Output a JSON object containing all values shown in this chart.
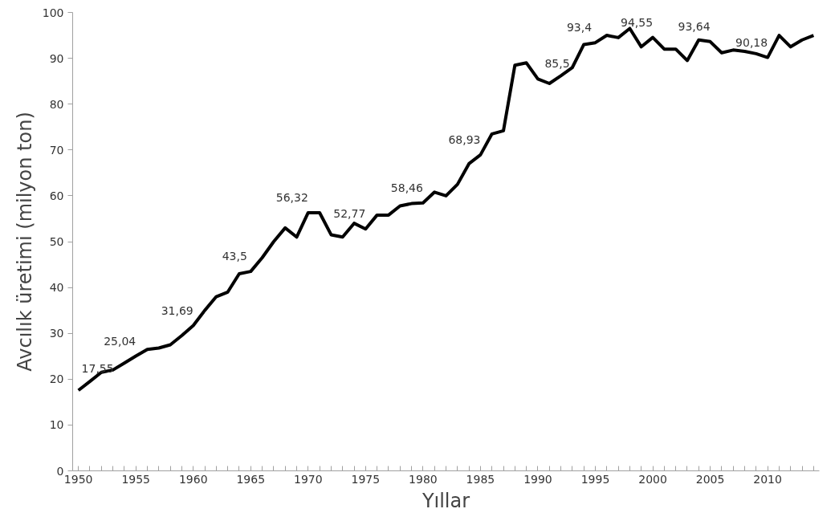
{
  "chart_data": {
    "type": "line",
    "xlabel": "Yıllar",
    "ylabel": "Avcılık üretimi (milyon ton)",
    "x": [
      1950,
      1951,
      1952,
      1953,
      1954,
      1955,
      1956,
      1957,
      1958,
      1959,
      1960,
      1961,
      1962,
      1963,
      1964,
      1965,
      1966,
      1967,
      1968,
      1969,
      1970,
      1971,
      1972,
      1973,
      1974,
      1975,
      1976,
      1977,
      1978,
      1979,
      1980,
      1981,
      1982,
      1983,
      1984,
      1985,
      1986,
      1987,
      1988,
      1989,
      1990,
      1991,
      1992,
      1993,
      1994,
      1995,
      1996,
      1997,
      1998,
      1999,
      2000,
      2001,
      2002,
      2003,
      2004,
      2005,
      2006,
      2007,
      2008,
      2009,
      2010,
      2011,
      2012,
      2013,
      2014
    ],
    "series": [
      {
        "color": "#000000",
        "values": [
          17.55,
          19.5,
          21.5,
          22,
          23.5,
          25.04,
          26.5,
          26.8,
          27.5,
          29.5,
          31.69,
          35,
          38,
          39,
          43,
          43.5,
          46.5,
          50,
          53,
          51,
          56.32,
          56.3,
          51.5,
          51,
          54,
          52.77,
          55.8,
          55.8,
          57.8,
          58.3,
          58.46,
          60.8,
          60,
          62.5,
          67,
          68.93,
          73.5,
          74.2,
          88.5,
          89,
          85.5,
          84.5,
          86.2,
          88,
          93,
          93.4,
          95,
          94.5,
          96.5,
          92.5,
          94.55,
          92,
          92,
          89.5,
          94,
          93.64,
          91.2,
          91.8,
          91.5,
          91,
          90.18,
          95,
          92.5,
          94,
          95
        ],
        "value_labels": [
          "17,55",
          null,
          null,
          null,
          null,
          "25,04",
          null,
          null,
          null,
          null,
          "31,69",
          null,
          null,
          null,
          null,
          "43,5",
          null,
          null,
          null,
          null,
          "56,32",
          null,
          null,
          null,
          null,
          "52,77",
          null,
          null,
          null,
          null,
          "58,46",
          null,
          null,
          null,
          null,
          "68,93",
          null,
          null,
          null,
          null,
          "85,5",
          null,
          null,
          null,
          null,
          "93,4",
          null,
          null,
          null,
          null,
          "94,55",
          null,
          null,
          null,
          null,
          "93,64",
          null,
          null,
          null,
          null,
          "90,18",
          null,
          null,
          null,
          null
        ]
      }
    ],
    "xlim": [
      1949.5,
      2014.5
    ],
    "xticks": [
      1950,
      {
        "value": 1951,
        "label": null
      },
      {
        "value": 1952,
        "label": null
      },
      {
        "value": 1953,
        "label": null
      },
      {
        "value": 1954,
        "label": null
      },
      1955,
      {
        "value": 1956,
        "label": null
      },
      {
        "value": 1957,
        "label": null
      },
      {
        "value": 1958,
        "label": null
      },
      {
        "value": 1959,
        "label": null
      },
      1960,
      {
        "value": 1961,
        "label": null
      },
      {
        "value": 1962,
        "label": null
      },
      {
        "value": 1963,
        "label": null
      },
      {
        "value": 1964,
        "label": null
      },
      1965,
      {
        "value": 1966,
        "label": null
      },
      {
        "value": 1967,
        "label": null
      },
      {
        "value": 1968,
        "label": null
      },
      {
        "value": 1969,
        "label": null
      },
      1970,
      {
        "value": 1971,
        "label": null
      },
      {
        "value": 1972,
        "label": null
      },
      {
        "value": 1973,
        "label": null
      },
      {
        "value": 1974,
        "label": null
      },
      1975,
      {
        "value": 1976,
        "label": null
      },
      {
        "value": 1977,
        "label": null
      },
      {
        "value": 1978,
        "label": null
      },
      {
        "value": 1979,
        "label": null
      },
      1980,
      {
        "value": 1981,
        "label": null
      },
      {
        "value": 1982,
        "label": null
      },
      {
        "value": 1983,
        "label": null
      },
      {
        "value": 1984,
        "label": null
      },
      1985,
      {
        "value": 1986,
        "label": null
      },
      {
        "value": 1987,
        "label": null
      },
      {
        "value": 1988,
        "label": null
      },
      {
        "value": 1989,
        "label": null
      },
      1990,
      {
        "value": 1991,
        "label": null
      },
      {
        "value": 1992,
        "label": null
      },
      {
        "value": 1993,
        "label": null
      },
      {
        "value": 1994,
        "label": null
      },
      1995,
      {
        "value": 1996,
        "label": null
      },
      {
        "value": 1997,
        "label": null
      },
      {
        "value": 1998,
        "label": null
      },
      {
        "value": 1999,
        "label": null
      },
      2000,
      {
        "value": 2001,
        "label": null
      },
      {
        "value": 2002,
        "label": null
      },
      {
        "value": 2003,
        "label": null
      },
      {
        "value": 2004,
        "label": null
      },
      2005,
      {
        "value": 2006,
        "label": null
      },
      {
        "value": 2007,
        "label": null
      },
      {
        "value": 2008,
        "label": null
      },
      {
        "value": 2009,
        "label": null
      },
      2010,
      {
        "value": 2011,
        "label": null
      },
      {
        "value": 2012,
        "label": null
      },
      {
        "value": 2013,
        "label": null
      },
      {
        "value": 2014,
        "label": null
      }
    ],
    "ylim": [
      0,
      100
    ],
    "yticks": [
      0,
      10,
      20,
      30,
      40,
      50,
      60,
      70,
      80,
      90,
      100
    ],
    "grid": false,
    "marker": "none",
    "line_style": "solid"
  }
}
